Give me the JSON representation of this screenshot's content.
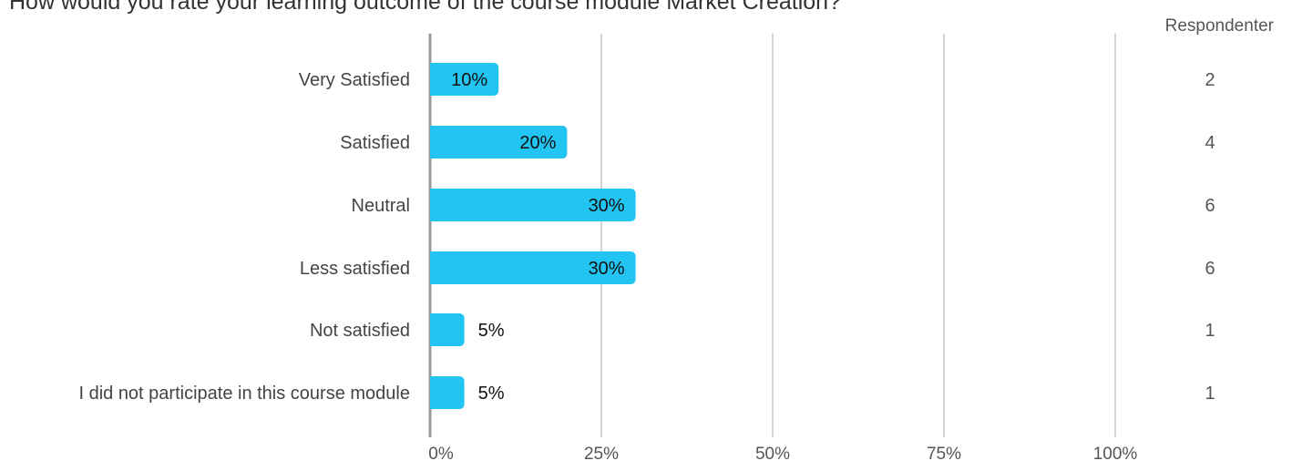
{
  "chart_data": {
    "type": "bar",
    "orientation": "horizontal",
    "title": "How would you rate your learning outcome of the course module Market Creation?",
    "categories": [
      "Very Satisfied",
      "Satisfied",
      "Neutral",
      "Less satisfied",
      "Not satisfied",
      "I did not participate in this course module"
    ],
    "values": [
      10,
      20,
      30,
      30,
      5,
      5
    ],
    "value_labels": [
      "10%",
      "20%",
      "30%",
      "30%",
      "5%",
      "5%"
    ],
    "respondents_header": "Respondenter",
    "respondents": [
      "2",
      "4",
      "6",
      "6",
      "1",
      "1"
    ],
    "x_ticks": [
      0,
      25,
      50,
      75,
      100
    ],
    "x_tick_labels": [
      "0%",
      "25%",
      "50%",
      "75%",
      "100%"
    ],
    "xlim": [
      0,
      100
    ],
    "grid": true,
    "bar_color": "#22C4F2",
    "grid_color": "#A8A8A8",
    "axis_color": "#999999"
  }
}
